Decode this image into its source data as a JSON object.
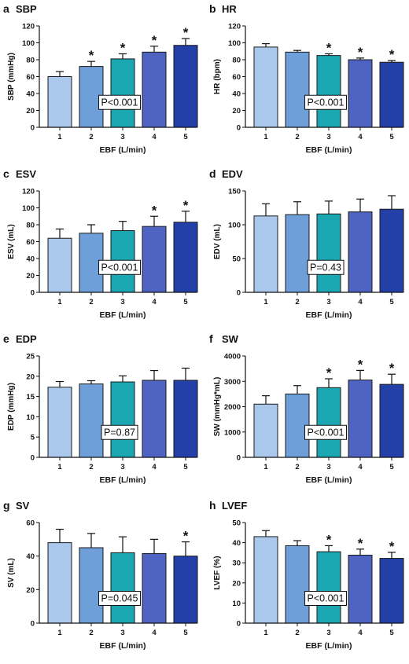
{
  "figure": {
    "xlabel": "EBF (L/min)",
    "categories": [
      "1",
      "2",
      "3",
      "4",
      "5"
    ],
    "bar_colors": [
      "#a9c8ec",
      "#6f9fd8",
      "#1aa7b2",
      "#4f63c3",
      "#2340a8"
    ],
    "bar_stroke": "#1a1a1a",
    "significance_marker": "*"
  },
  "chart_data": [
    {
      "panel": "a",
      "type": "bar",
      "title": "SBP",
      "ylabel": "SBP (mmHg)",
      "ylim": [
        0,
        120
      ],
      "yticks": [
        "0",
        "20",
        "40",
        "60",
        "80",
        "100",
        "120"
      ],
      "categories": [
        "1",
        "2",
        "3",
        "4",
        "5"
      ],
      "values": [
        60,
        72,
        81,
        89,
        97
      ],
      "errors": [
        6,
        6,
        6,
        7,
        8
      ],
      "significant": [
        false,
        true,
        true,
        true,
        true
      ],
      "p_label": "P<0.001",
      "p_position": "center"
    },
    {
      "panel": "b",
      "type": "bar",
      "title": "HR",
      "ylabel": "HR (bpm)",
      "ylim": [
        0,
        120
      ],
      "yticks": [
        "0",
        "20",
        "40",
        "60",
        "80",
        "100",
        "120"
      ],
      "categories": [
        "1",
        "2",
        "3",
        "4",
        "5"
      ],
      "values": [
        95,
        89,
        85,
        80,
        77
      ],
      "errors": [
        4,
        2,
        2,
        2,
        2
      ],
      "significant": [
        false,
        false,
        true,
        true,
        true
      ],
      "p_label": "P<0.001",
      "p_position": "center"
    },
    {
      "panel": "c",
      "type": "bar",
      "title": "ESV",
      "ylabel": "ESV (mL)",
      "ylim": [
        0,
        120
      ],
      "yticks": [
        "0",
        "20",
        "40",
        "60",
        "80",
        "100",
        "120"
      ],
      "categories": [
        "1",
        "2",
        "3",
        "4",
        "5"
      ],
      "values": [
        64,
        70,
        73,
        78,
        83
      ],
      "errors": [
        11,
        10,
        11,
        12,
        13
      ],
      "significant": [
        false,
        false,
        false,
        true,
        true
      ],
      "p_label": "P<0.001",
      "p_position": "center"
    },
    {
      "panel": "d",
      "type": "bar",
      "title": "EDV",
      "ylabel": "EDV (mL)",
      "ylim": [
        0,
        150
      ],
      "yticks": [
        "0",
        "50",
        "100",
        "150"
      ],
      "categories": [
        "1",
        "2",
        "3",
        "4",
        "5"
      ],
      "values": [
        113,
        115,
        116,
        119,
        123
      ],
      "errors": [
        18,
        19,
        19,
        19,
        20
      ],
      "significant": [
        false,
        false,
        false,
        false,
        false
      ],
      "p_label": "P=0.43",
      "p_position": "center"
    },
    {
      "panel": "e",
      "type": "bar",
      "title": "EDP",
      "ylabel": "EDP (mmHg)",
      "ylim": [
        0,
        25
      ],
      "yticks": [
        "0",
        "5",
        "10",
        "15",
        "20",
        "25"
      ],
      "categories": [
        "1",
        "2",
        "3",
        "4",
        "5"
      ],
      "values": [
        17.3,
        18.1,
        18.6,
        19.0,
        19.0
      ],
      "errors": [
        1.4,
        0.8,
        1.5,
        2.4,
        3.0
      ],
      "significant": [
        false,
        false,
        false,
        false,
        false
      ],
      "p_label": "P=0.87",
      "p_position": "center"
    },
    {
      "panel": "f",
      "type": "bar",
      "title": "SW",
      "ylabel": "SW (mmHg*mL)",
      "ylim": [
        0,
        4000
      ],
      "yticks": [
        "0",
        "1000",
        "2000",
        "3000",
        "4000"
      ],
      "categories": [
        "1",
        "2",
        "3",
        "4",
        "5"
      ],
      "values": [
        2100,
        2500,
        2750,
        3050,
        2880
      ],
      "errors": [
        330,
        330,
        350,
        380,
        400
      ],
      "significant": [
        false,
        false,
        true,
        true,
        true
      ],
      "p_label": "P<0.001",
      "p_position": "center"
    },
    {
      "panel": "g",
      "type": "bar",
      "title": "SV",
      "ylabel": "SV (mL)",
      "ylim": [
        0,
        60
      ],
      "yticks": [
        "0",
        "20",
        "40",
        "60"
      ],
      "categories": [
        "1",
        "2",
        "3",
        "4",
        "5"
      ],
      "values": [
        48,
        45,
        42,
        41.5,
        40
      ],
      "errors": [
        8,
        8.5,
        9.5,
        8.5,
        8.5
      ],
      "significant": [
        false,
        false,
        false,
        false,
        true
      ],
      "p_label": "P=0.045",
      "p_position": "center"
    },
    {
      "panel": "h",
      "type": "bar",
      "title": "LVEF",
      "ylabel": "LVEF (%)",
      "ylim": [
        0,
        50
      ],
      "yticks": [
        "0",
        "10",
        "20",
        "30",
        "40",
        "50"
      ],
      "categories": [
        "1",
        "2",
        "3",
        "4",
        "5"
      ],
      "values": [
        43,
        38.5,
        35.5,
        33.8,
        32.2
      ],
      "errors": [
        3,
        2.5,
        3,
        3,
        3
      ],
      "significant": [
        false,
        false,
        true,
        true,
        true
      ],
      "p_label": "P<0.001",
      "p_position": "center"
    }
  ]
}
